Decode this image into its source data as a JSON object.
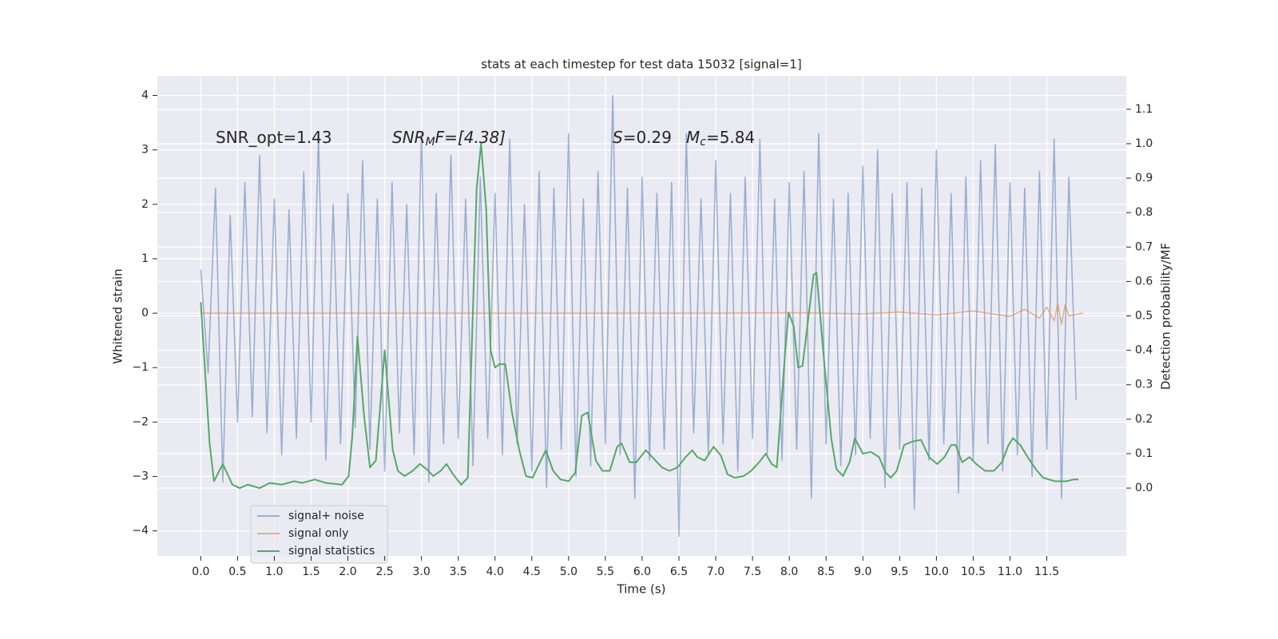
{
  "chart_data": {
    "type": "line",
    "title": "stats at each timestep for test data 15032 [signal=1]",
    "xlabel": "Time (s)",
    "ylabel": "Whitened strain",
    "y2label": "Detection probability/MF",
    "xlim": [
      -0.59,
      12.58
    ],
    "ylim": [
      -4.46,
      4.36
    ],
    "y2lim": [
      -0.197,
      1.197
    ],
    "xticks": [
      {
        "value": 0,
        "label": "0.0"
      },
      0.5,
      {
        "value": 1,
        "label": "1.0"
      },
      1.5,
      {
        "value": 2,
        "label": "2.0"
      },
      2.5,
      {
        "value": 3,
        "label": "3.0"
      },
      3.5,
      {
        "value": 4,
        "label": "4.0"
      },
      4.5,
      {
        "value": 5,
        "label": "5.0"
      },
      5.5,
      {
        "value": 6,
        "label": "6.0"
      },
      6.5,
      {
        "value": 7,
        "label": "7.0"
      },
      7.5,
      {
        "value": 8,
        "label": "8.0"
      },
      8.5,
      {
        "value": 9,
        "label": "9.0"
      },
      9.5,
      {
        "value": 10,
        "label": "10.0"
      },
      10.5,
      {
        "value": 11,
        "label": "11.0"
      },
      11.5
    ],
    "yticks": [
      {
        "value": -4,
        "label": "−4"
      },
      {
        "value": -3,
        "label": "−3"
      },
      {
        "value": -2,
        "label": "−2"
      },
      {
        "value": -1,
        "label": "−1"
      },
      0,
      1,
      2,
      3,
      4
    ],
    "y2ticks": [
      {
        "value": 0,
        "label": "0.0"
      },
      0.1,
      0.2,
      0.3,
      0.4,
      0.5,
      0.6,
      0.7,
      0.8,
      0.9,
      {
        "value": 1,
        "label": "1.0"
      },
      1.1
    ],
    "grid": true,
    "legend": "lower left",
    "annotations": [
      [
        "SNR_opt=1.43"
      ],
      [
        "SNR",
        "M",
        "F=[4.38]"
      ],
      [
        "S",
        "=0.29"
      ],
      [
        "M",
        "c",
        "=5.84"
      ]
    ],
    "series": [
      {
        "name": "signal+ noise",
        "color": "#4c72b0",
        "x": [
          0.0,
          0.1,
          0.2,
          0.3,
          0.4,
          0.5,
          0.6,
          0.7,
          0.8,
          0.9,
          1.0,
          1.1,
          1.2,
          1.3,
          1.4,
          1.5,
          1.6,
          1.7,
          1.8,
          1.9,
          2.0,
          2.1,
          2.2,
          2.3,
          2.4,
          2.5,
          2.6,
          2.7,
          2.8,
          2.9,
          3.0,
          3.1,
          3.2,
          3.3,
          3.4,
          3.5,
          3.6,
          3.7,
          3.8,
          3.9,
          4.0,
          4.1,
          4.2,
          4.3,
          4.4,
          4.5,
          4.6,
          4.7,
          4.8,
          4.9,
          5.0,
          5.1,
          5.2,
          5.3,
          5.4,
          5.5,
          5.6,
          5.7,
          5.8,
          5.9,
          6.0,
          6.1,
          6.2,
          6.3,
          6.4,
          6.5,
          6.6,
          6.7,
          6.8,
          6.9,
          7.0,
          7.1,
          7.2,
          7.3,
          7.4,
          7.5,
          7.6,
          7.7,
          7.8,
          7.9,
          8.0,
          8.1,
          8.2,
          8.3,
          8.4,
          8.5,
          8.6,
          8.7,
          8.8,
          8.9,
          9.0,
          9.1,
          9.2,
          9.3,
          9.4,
          9.5,
          9.6,
          9.7,
          9.8,
          9.9,
          10.0,
          10.1,
          10.2,
          10.3,
          10.4,
          10.5,
          10.6,
          10.7,
          10.8,
          10.9,
          11.0,
          11.1,
          11.2,
          11.3,
          11.4,
          11.5,
          11.6,
          11.7,
          11.8,
          11.9
        ],
        "values": [
          0.8,
          -1.1,
          2.3,
          -3.1,
          1.8,
          -2.0,
          2.4,
          -1.9,
          2.9,
          -2.2,
          2.1,
          -2.6,
          1.9,
          -2.3,
          2.6,
          -2.0,
          3.3,
          -2.7,
          2.0,
          -2.4,
          2.2,
          -2.1,
          2.8,
          -2.5,
          2.1,
          -2.9,
          2.4,
          -2.2,
          2.0,
          -2.6,
          3.3,
          -3.1,
          2.2,
          -2.4,
          2.9,
          -2.3,
          2.1,
          -2.8,
          2.5,
          -2.3,
          2.2,
          -2.6,
          3.2,
          -2.4,
          2.0,
          -2.9,
          2.6,
          -3.2,
          2.3,
          -2.5,
          3.3,
          -3.0,
          2.1,
          -2.8,
          2.6,
          -2.4,
          4.0,
          -2.6,
          2.3,
          -3.4,
          2.5,
          -2.7,
          2.2,
          -2.5,
          2.4,
          -4.1,
          3.3,
          -2.2,
          2.1,
          -2.6,
          2.8,
          -2.4,
          2.2,
          -2.9,
          2.5,
          -2.3,
          3.2,
          -2.6,
          2.1,
          -2.7,
          2.4,
          -2.5,
          2.6,
          -3.4,
          3.3,
          -2.4,
          2.1,
          -2.8,
          2.2,
          -2.6,
          2.7,
          -2.3,
          3.0,
          -3.2,
          2.2,
          -2.5,
          2.4,
          -3.6,
          2.3,
          -2.7,
          3.0,
          -2.4,
          2.2,
          -3.3,
          2.5,
          -2.7,
          2.8,
          -2.4,
          3.1,
          -2.9,
          2.4,
          -2.6,
          2.3,
          -3.0,
          2.6,
          -2.5,
          3.2,
          -3.4,
          2.5,
          -1.6
        ]
      },
      {
        "name": "signal only",
        "color": "#dd8452",
        "x": [
          0,
          1,
          2,
          3,
          4,
          5,
          6,
          7,
          8,
          9,
          9.5,
          10,
          10.5,
          11,
          11.2,
          11.4,
          11.5,
          11.6,
          11.65,
          11.7,
          11.75,
          11.8,
          11.99
        ],
        "values": [
          0,
          0,
          0,
          0,
          0,
          0,
          0,
          0,
          0.01,
          -0.01,
          0.02,
          -0.03,
          0.04,
          -0.06,
          0.07,
          -0.09,
          0.11,
          -0.14,
          0.18,
          -0.2,
          0.15,
          -0.05,
          0
        ]
      },
      {
        "name": "signal statistics",
        "color": "#55a868",
        "axis": "y2",
        "x": [
          0.0,
          0.12,
          0.18,
          0.3,
          0.43,
          0.53,
          0.64,
          0.8,
          0.94,
          1.1,
          1.27,
          1.38,
          1.55,
          1.7,
          1.92,
          2.01,
          2.06,
          2.13,
          2.22,
          2.3,
          2.38,
          2.5,
          2.61,
          2.68,
          2.77,
          2.88,
          2.98,
          3.07,
          3.16,
          3.26,
          3.34,
          3.43,
          3.54,
          3.63,
          3.75,
          3.81,
          3.88,
          3.94,
          4.0,
          4.06,
          4.14,
          4.23,
          4.33,
          4.42,
          4.51,
          4.6,
          4.69,
          4.79,
          4.89,
          5.0,
          5.09,
          5.18,
          5.26,
          5.37,
          5.46,
          5.56,
          5.66,
          5.72,
          5.83,
          5.92,
          6.05,
          6.16,
          6.27,
          6.37,
          6.48,
          6.59,
          6.68,
          6.75,
          6.85,
          6.97,
          7.07,
          7.16,
          7.26,
          7.38,
          7.48,
          7.59,
          7.68,
          7.76,
          7.83,
          7.94,
          7.99,
          8.06,
          8.12,
          8.18,
          8.33,
          8.37,
          8.46,
          8.57,
          8.64,
          8.73,
          8.82,
          8.89,
          9.0,
          9.11,
          9.22,
          9.31,
          9.38,
          9.46,
          9.56,
          9.67,
          9.79,
          9.9,
          10.01,
          10.11,
          10.2,
          10.26,
          10.35,
          10.45,
          10.54,
          10.66,
          10.78,
          10.89,
          10.98,
          11.04,
          11.14,
          11.24,
          11.35,
          11.45,
          11.61,
          11.77,
          11.86,
          11.93
        ],
        "values": [
          0.54,
          0.13,
          0.02,
          0.07,
          0.01,
          0.0,
          0.01,
          0.0,
          0.015,
          0.01,
          0.02,
          0.015,
          0.025,
          0.015,
          0.01,
          0.035,
          0.15,
          0.44,
          0.21,
          0.06,
          0.08,
          0.4,
          0.11,
          0.05,
          0.035,
          0.05,
          0.07,
          0.055,
          0.035,
          0.05,
          0.07,
          0.04,
          0.01,
          0.03,
          0.87,
          1.0,
          0.81,
          0.4,
          0.35,
          0.36,
          0.36,
          0.22,
          0.11,
          0.035,
          0.03,
          0.07,
          0.11,
          0.05,
          0.025,
          0.02,
          0.045,
          0.21,
          0.22,
          0.08,
          0.05,
          0.05,
          0.12,
          0.13,
          0.075,
          0.075,
          0.11,
          0.085,
          0.06,
          0.05,
          0.06,
          0.09,
          0.11,
          0.09,
          0.08,
          0.12,
          0.095,
          0.04,
          0.03,
          0.035,
          0.05,
          0.075,
          0.1,
          0.07,
          0.06,
          0.385,
          0.51,
          0.47,
          0.35,
          0.355,
          0.62,
          0.625,
          0.4,
          0.145,
          0.055,
          0.035,
          0.075,
          0.145,
          0.1,
          0.105,
          0.09,
          0.045,
          0.03,
          0.05,
          0.125,
          0.135,
          0.14,
          0.09,
          0.07,
          0.09,
          0.125,
          0.125,
          0.075,
          0.09,
          0.07,
          0.05,
          0.05,
          0.075,
          0.125,
          0.145,
          0.125,
          0.09,
          0.055,
          0.03,
          0.02,
          0.02,
          0.025,
          0.025
        ]
      }
    ]
  }
}
